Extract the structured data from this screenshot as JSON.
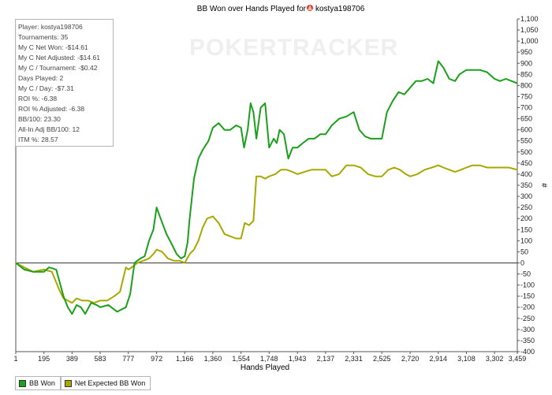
{
  "title_prefix": "BB Won over Hands Played for",
  "player_name": "kostya198706",
  "watermark": "POKERTRACKER",
  "stats": [
    "Player: kostya198706",
    "Tournaments: 35",
    "My C Net Won: -$14.61",
    "My C Net Adjusted: -$14.61",
    "My C / Tournament: -$0.42",
    "Days Played: 2",
    "My C / Day: -$7.31",
    "ROI %: -6.38",
    "ROI % Adjusted: -6.38",
    "BB/100: 23.30",
    "All-In Adj BB/100: 12",
    "ITM %: 28.57"
  ],
  "legend": {
    "bb_won": "BB Won",
    "net_expected": "Net Expected BB Won"
  },
  "colors": {
    "bb_won": "#1aa01a",
    "net_expected": "#a8a800",
    "zero_line": "#3a3a3a",
    "axis": "#555555"
  },
  "chart_data": {
    "type": "line",
    "title": "BB Won over Hands Played for kostya198706",
    "xlabel": "Hands Played",
    "ylabel": "#",
    "x_ticks": [
      "1",
      "195",
      "389",
      "583",
      "777",
      "972",
      "1,166",
      "1,360",
      "1,554",
      "1,748",
      "1,943",
      "2,137",
      "2,331",
      "2,525",
      "2,720",
      "2,914",
      "3,108",
      "3,302",
      "3,459"
    ],
    "y_ticks": [
      "-400",
      "-350",
      "-300",
      "-250",
      "-200",
      "-150",
      "-100",
      "-50",
      "0",
      "50",
      "100",
      "150",
      "200",
      "250",
      "300",
      "350",
      "400",
      "450",
      "500",
      "550",
      "600",
      "650",
      "700",
      "750",
      "800",
      "850",
      "900",
      "950",
      "1,000",
      "1,050",
      "1,100"
    ],
    "xlim": [
      1,
      3459
    ],
    "ylim": [
      -400,
      1100
    ],
    "series": [
      {
        "name": "BB Won",
        "points": [
          [
            1,
            0
          ],
          [
            60,
            -30
          ],
          [
            120,
            -40
          ],
          [
            195,
            -40
          ],
          [
            230,
            -20
          ],
          [
            280,
            -30
          ],
          [
            330,
            -150
          ],
          [
            360,
            -200
          ],
          [
            389,
            -230
          ],
          [
            420,
            -190
          ],
          [
            450,
            -200
          ],
          [
            480,
            -230
          ],
          [
            520,
            -180
          ],
          [
            560,
            -190
          ],
          [
            583,
            -200
          ],
          [
            640,
            -190
          ],
          [
            700,
            -220
          ],
          [
            760,
            -200
          ],
          [
            790,
            -140
          ],
          [
            820,
            0
          ],
          [
            860,
            20
          ],
          [
            890,
            30
          ],
          [
            920,
            100
          ],
          [
            950,
            150
          ],
          [
            972,
            250
          ],
          [
            1000,
            200
          ],
          [
            1040,
            130
          ],
          [
            1080,
            80
          ],
          [
            1110,
            40
          ],
          [
            1140,
            20
          ],
          [
            1166,
            30
          ],
          [
            1185,
            90
          ],
          [
            1200,
            200
          ],
          [
            1230,
            380
          ],
          [
            1260,
            470
          ],
          [
            1290,
            510
          ],
          [
            1330,
            550
          ],
          [
            1360,
            610
          ],
          [
            1400,
            630
          ],
          [
            1440,
            600
          ],
          [
            1480,
            600
          ],
          [
            1520,
            620
          ],
          [
            1554,
            610
          ],
          [
            1575,
            520
          ],
          [
            1600,
            600
          ],
          [
            1620,
            720
          ],
          [
            1640,
            680
          ],
          [
            1660,
            560
          ],
          [
            1690,
            700
          ],
          [
            1720,
            720
          ],
          [
            1748,
            520
          ],
          [
            1780,
            560
          ],
          [
            1800,
            540
          ],
          [
            1820,
            600
          ],
          [
            1850,
            580
          ],
          [
            1880,
            470
          ],
          [
            1910,
            520
          ],
          [
            1943,
            520
          ],
          [
            1980,
            540
          ],
          [
            2020,
            560
          ],
          [
            2060,
            560
          ],
          [
            2100,
            580
          ],
          [
            2137,
            580
          ],
          [
            2180,
            620
          ],
          [
            2230,
            650
          ],
          [
            2280,
            660
          ],
          [
            2331,
            680
          ],
          [
            2370,
            600
          ],
          [
            2410,
            570
          ],
          [
            2450,
            560
          ],
          [
            2490,
            560
          ],
          [
            2525,
            560
          ],
          [
            2560,
            680
          ],
          [
            2600,
            730
          ],
          [
            2640,
            770
          ],
          [
            2680,
            760
          ],
          [
            2720,
            790
          ],
          [
            2760,
            820
          ],
          [
            2800,
            820
          ],
          [
            2840,
            830
          ],
          [
            2880,
            810
          ],
          [
            2914,
            910
          ],
          [
            2950,
            880
          ],
          [
            2990,
            830
          ],
          [
            3030,
            820
          ],
          [
            3060,
            850
          ],
          [
            3108,
            870
          ],
          [
            3150,
            870
          ],
          [
            3200,
            870
          ],
          [
            3250,
            860
          ],
          [
            3302,
            830
          ],
          [
            3340,
            820
          ],
          [
            3380,
            830
          ],
          [
            3420,
            820
          ],
          [
            3459,
            810
          ]
        ]
      },
      {
        "name": "Net Expected BB Won",
        "points": [
          [
            1,
            0
          ],
          [
            60,
            -20
          ],
          [
            120,
            -40
          ],
          [
            195,
            -30
          ],
          [
            250,
            -40
          ],
          [
            300,
            -120
          ],
          [
            330,
            -160
          ],
          [
            360,
            -170
          ],
          [
            389,
            -180
          ],
          [
            420,
            -160
          ],
          [
            460,
            -170
          ],
          [
            500,
            -170
          ],
          [
            540,
            -180
          ],
          [
            583,
            -170
          ],
          [
            630,
            -170
          ],
          [
            680,
            -150
          ],
          [
            720,
            -130
          ],
          [
            760,
            -20
          ],
          [
            777,
            -30
          ],
          [
            800,
            -20
          ],
          [
            840,
            0
          ],
          [
            880,
            10
          ],
          [
            920,
            20
          ],
          [
            950,
            40
          ],
          [
            972,
            60
          ],
          [
            1010,
            50
          ],
          [
            1050,
            20
          ],
          [
            1090,
            10
          ],
          [
            1130,
            10
          ],
          [
            1166,
            0
          ],
          [
            1200,
            40
          ],
          [
            1230,
            60
          ],
          [
            1260,
            100
          ],
          [
            1290,
            160
          ],
          [
            1320,
            200
          ],
          [
            1360,
            210
          ],
          [
            1400,
            180
          ],
          [
            1440,
            130
          ],
          [
            1480,
            120
          ],
          [
            1520,
            110
          ],
          [
            1554,
            110
          ],
          [
            1580,
            180
          ],
          [
            1610,
            170
          ],
          [
            1640,
            190
          ],
          [
            1660,
            390
          ],
          [
            1690,
            390
          ],
          [
            1720,
            380
          ],
          [
            1748,
            390
          ],
          [
            1790,
            400
          ],
          [
            1830,
            420
          ],
          [
            1870,
            420
          ],
          [
            1910,
            410
          ],
          [
            1943,
            400
          ],
          [
            1990,
            410
          ],
          [
            2040,
            420
          ],
          [
            2090,
            420
          ],
          [
            2137,
            420
          ],
          [
            2180,
            390
          ],
          [
            2230,
            400
          ],
          [
            2280,
            440
          ],
          [
            2331,
            440
          ],
          [
            2380,
            430
          ],
          [
            2430,
            400
          ],
          [
            2480,
            390
          ],
          [
            2525,
            390
          ],
          [
            2570,
            420
          ],
          [
            2610,
            430
          ],
          [
            2650,
            420
          ],
          [
            2690,
            400
          ],
          [
            2720,
            390
          ],
          [
            2770,
            400
          ],
          [
            2820,
            420
          ],
          [
            2870,
            430
          ],
          [
            2914,
            440
          ],
          [
            2950,
            430
          ],
          [
            2990,
            420
          ],
          [
            3030,
            410
          ],
          [
            3070,
            420
          ],
          [
            3108,
            430
          ],
          [
            3150,
            440
          ],
          [
            3200,
            440
          ],
          [
            3250,
            430
          ],
          [
            3302,
            430
          ],
          [
            3350,
            430
          ],
          [
            3400,
            430
          ],
          [
            3459,
            420
          ]
        ]
      }
    ],
    "grid": false,
    "legend_position": "bottom-left"
  }
}
